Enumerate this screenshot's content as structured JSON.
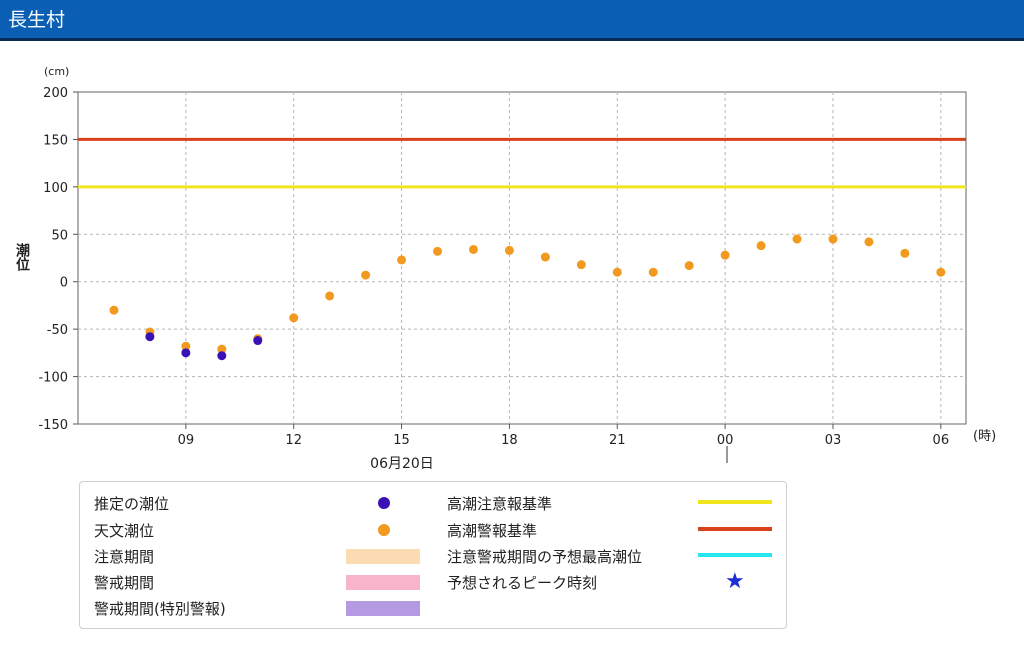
{
  "header": {
    "title": "長生村"
  },
  "colors": {
    "estimated": "#3a11b5",
    "astronomical": "#f29a1f",
    "caution_period": "#fbdcb3",
    "warning_period": "#f7b4cb",
    "special_warning_period": "#b49ae0",
    "caution_line": "#f0e41c",
    "warning_line": "#d9401c",
    "peak_line": "#27e6ef",
    "peak_star": "#1c2fd6"
  },
  "chart_data": {
    "type": "scatter",
    "unit_label": "(cm)",
    "ylabel": "潮位",
    "x_unit_label": "(時)",
    "date_label": "06月20日",
    "ylim": [
      -150,
      200
    ],
    "y_ticks": [
      200,
      150,
      100,
      50,
      0,
      -50,
      -100,
      -150
    ],
    "x_range_hours": [
      6,
      30.7
    ],
    "x_ticks": [
      {
        "hour": 9,
        "label": "09"
      },
      {
        "hour": 12,
        "label": "12"
      },
      {
        "hour": 15,
        "label": "15"
      },
      {
        "hour": 18,
        "label": "18"
      },
      {
        "hour": 21,
        "label": "21"
      },
      {
        "hour": 24,
        "label": "00"
      },
      {
        "hour": 27,
        "label": "03"
      },
      {
        "hour": 30,
        "label": "06"
      }
    ],
    "grid": true,
    "reference_lines": [
      {
        "name": "高潮注意報基準",
        "value": 100,
        "color": "#f0e41c"
      },
      {
        "name": "高潮警報基準",
        "value": 150,
        "color": "#d9401c"
      }
    ],
    "series": [
      {
        "name": "天文潮位",
        "color": "#f29a1f",
        "x": [
          7,
          8,
          9,
          10,
          11,
          12,
          13,
          14,
          15,
          16,
          17,
          18,
          19,
          20,
          21,
          22,
          23,
          24,
          25,
          26,
          27,
          28,
          29,
          30
        ],
        "values": [
          -30,
          -53,
          -68,
          -71,
          -60,
          -38,
          -15,
          7,
          23,
          32,
          34,
          33,
          26,
          18,
          10,
          10,
          17,
          28,
          38,
          45,
          45,
          42,
          30,
          10
        ]
      },
      {
        "name": "推定の潮位",
        "color": "#3a11b5",
        "x": [
          8,
          9,
          10,
          11
        ],
        "values": [
          -58,
          -75,
          -78,
          -62
        ]
      }
    ]
  },
  "legend": {
    "estimated_tide": "推定の潮位",
    "astronomical_tide": "天文潮位",
    "caution_period": "注意期間",
    "warning_period": "警戒期間",
    "special_warning_period": "警戒期間(特別警報)",
    "storm_surge_advisory": "高潮注意報基準",
    "storm_surge_warning": "高潮警報基準",
    "predicted_max_tide": "注意警戒期間の予想最高潮位",
    "predicted_peak_time": "予想されるピーク時刻",
    "star_icon": "★"
  }
}
